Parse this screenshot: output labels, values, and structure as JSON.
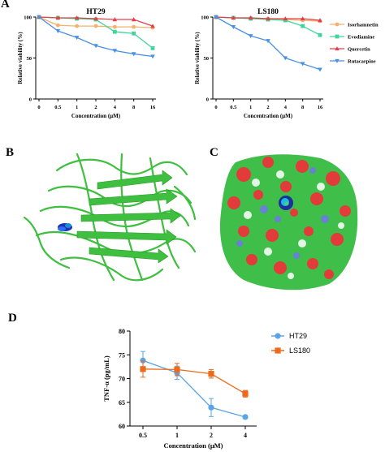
{
  "panels": {
    "a": "A",
    "b": "B",
    "c": "C",
    "d": "D"
  },
  "colors": {
    "isorhamnetin": "#f5b06c",
    "evodiamine": "#3ed69a",
    "quercetin": "#e0404a",
    "rutaecarpine": "#4a90e2",
    "ht29": "#5aa5e6",
    "ls180": "#ec6a1c"
  },
  "chart_data": [
    {
      "type": "line",
      "title": "HT29",
      "xlabel": "Concentration (μM)",
      "ylabel": "Relative viability (%)",
      "categories": [
        "0",
        "0.5",
        "1",
        "2",
        "4",
        "8",
        "16"
      ],
      "ylim": [
        0,
        100
      ],
      "yticks": [
        "0",
        "50",
        "100"
      ],
      "series": [
        {
          "name": "Isorhamnetin",
          "marker": "circle",
          "values": [
            100,
            90,
            89,
            89,
            88,
            88,
            87
          ]
        },
        {
          "name": "Evodiamine",
          "marker": "square",
          "values": [
            100,
            99,
            98,
            97,
            82,
            80,
            62
          ]
        },
        {
          "name": "Quercetin",
          "marker": "triangle-up",
          "values": [
            100,
            99,
            99,
            98,
            97,
            97,
            89
          ]
        },
        {
          "name": "Rutacarpine",
          "marker": "triangle-down",
          "values": [
            100,
            83,
            75,
            65,
            59,
            55,
            52
          ]
        }
      ]
    },
    {
      "type": "line",
      "title": "LS180",
      "xlabel": "Concentration (μM)",
      "ylabel": "Relative viability (%)",
      "categories": [
        "0",
        "0.5",
        "1",
        "2",
        "4",
        "8",
        "16"
      ],
      "ylim": [
        0,
        100
      ],
      "yticks": [
        "0",
        "50",
        "100"
      ],
      "legend": "right",
      "series": [
        {
          "name": "Isorhamnetin",
          "marker": "circle",
          "values": [
            100,
            99,
            99,
            98,
            97,
            96,
            95
          ]
        },
        {
          "name": "Evodiamine",
          "marker": "square",
          "values": [
            100,
            99,
            98,
            97,
            96,
            89,
            78
          ]
        },
        {
          "name": "Quercetin",
          "marker": "triangle-up",
          "values": [
            100,
            99,
            99,
            98,
            98,
            98,
            96
          ]
        },
        {
          "name": "Rutacarpine",
          "marker": "triangle-down",
          "values": [
            100,
            88,
            77,
            71,
            50,
            43,
            36
          ]
        }
      ]
    },
    {
      "type": "line",
      "xlabel": "Concentration (μM)",
      "ylabel": "TNF-α (pg/mL)",
      "categories": [
        "0.5",
        "1",
        "2",
        "4"
      ],
      "ylim": [
        60,
        80
      ],
      "yticks": [
        "60",
        "65",
        "70",
        "75",
        "80"
      ],
      "legend": "right",
      "series": [
        {
          "name": "HT29",
          "marker": "circle",
          "values": [
            73.8,
            71.2,
            63.9,
            61.9
          ],
          "errors": [
            1.9,
            1.4,
            1.9,
            0.3
          ]
        },
        {
          "name": "LS180",
          "marker": "square",
          "values": [
            72.0,
            71.9,
            71.0,
            66.8
          ],
          "errors": [
            1.7,
            1.3,
            0.9,
            0.7
          ]
        }
      ]
    }
  ]
}
